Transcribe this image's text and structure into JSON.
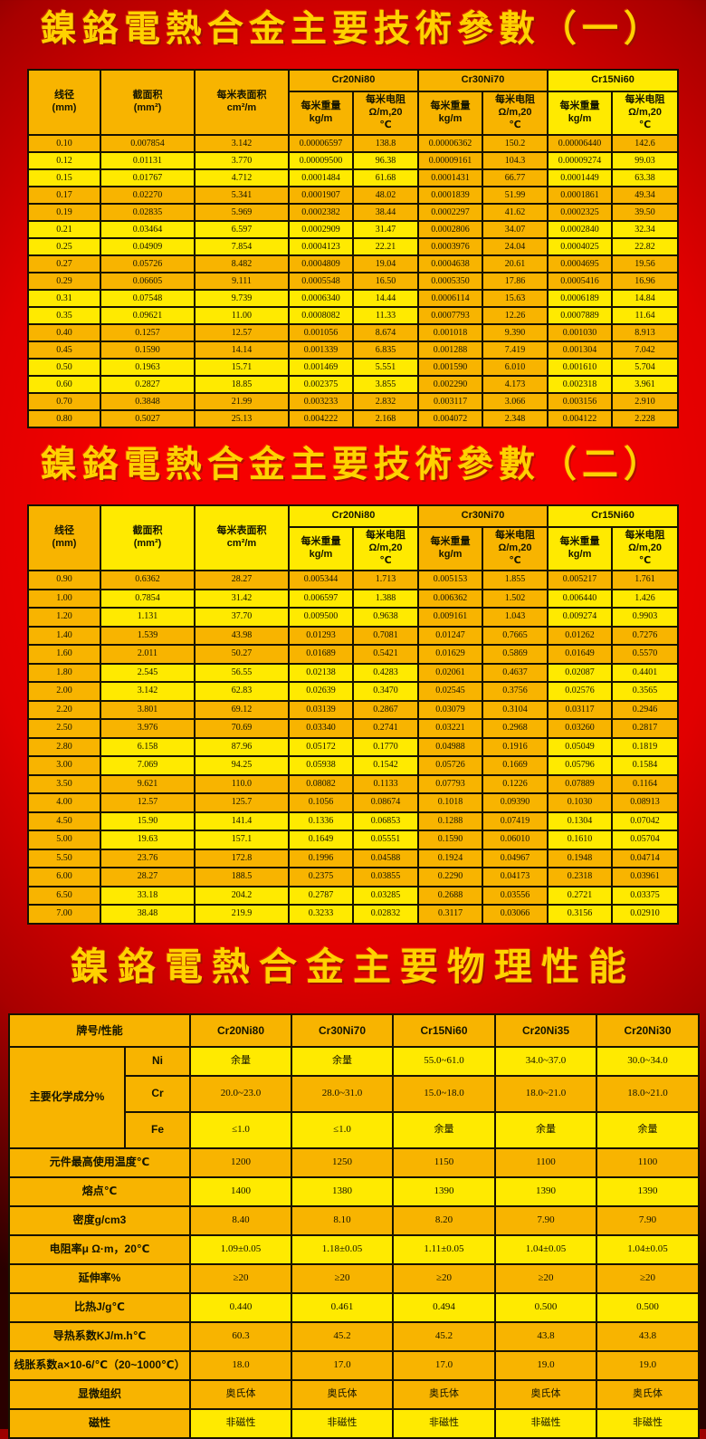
{
  "page": {
    "title_1": "鎳鉻電熱合金主要技術參數（一）",
    "title_2": "鎳鉻電熱合金主要技術參數（二）",
    "title_3": "鎳鉻電熱合金主要物理性能"
  },
  "palette": {
    "background_red": "#E10000",
    "cell_gold": "#F8B400",
    "cell_yellow": "#FFEA00",
    "title_gold": "#FFD200",
    "grid_black": "#181200"
  },
  "tech_table_headers": {
    "diameter": "线径\n(mm)",
    "section_area": "截面积\n(mm²)",
    "surface_area": "每米表面积\ncm²/m",
    "alloys": [
      "Cr20Ni80",
      "Cr30Ni70",
      "Cr15Ni60"
    ],
    "weight": "每米重量\nkg/m",
    "resistance": "每米电阻\nΩ/m,20\n℃"
  },
  "table1": {
    "rows": [
      [
        "0.10",
        "0.007854",
        "3.142",
        "0.00006597",
        "138.8",
        "0.00006362",
        "150.2",
        "0.00006440",
        "142.6"
      ],
      [
        "0.12",
        "0.01131",
        "3.770",
        "0.00009500",
        "96.38",
        "0.00009161",
        "104.3",
        "0.00009274",
        "99.03"
      ],
      [
        "0.15",
        "0.01767",
        "4.712",
        "0.0001484",
        "61.68",
        "0.0001431",
        "66.77",
        "0.0001449",
        "63.38"
      ],
      [
        "0.17",
        "0.02270",
        "5.341",
        "0.0001907",
        "48.02",
        "0.0001839",
        "51.99",
        "0.0001861",
        "49.34"
      ],
      [
        "0.19",
        "0.02835",
        "5.969",
        "0.0002382",
        "38.44",
        "0.0002297",
        "41.62",
        "0.0002325",
        "39.50"
      ],
      [
        "0.21",
        "0.03464",
        "6.597",
        "0.0002909",
        "31.47",
        "0.0002806",
        "34.07",
        "0.0002840",
        "32.34"
      ],
      [
        "0.25",
        "0.04909",
        "7.854",
        "0.0004123",
        "22.21",
        "0.0003976",
        "24.04",
        "0.0004025",
        "22.82"
      ],
      [
        "0.27",
        "0.05726",
        "8.482",
        "0.0004809",
        "19.04",
        "0.0004638",
        "20.61",
        "0.0004695",
        "19.56"
      ],
      [
        "0.29",
        "0.06605",
        "9.111",
        "0.0005548",
        "16.50",
        "0.0005350",
        "17.86",
        "0.0005416",
        "16.96"
      ],
      [
        "0.31",
        "0.07548",
        "9.739",
        "0.0006340",
        "14.44",
        "0.0006114",
        "15.63",
        "0.0006189",
        "14.84"
      ],
      [
        "0.35",
        "0.09621",
        "11.00",
        "0.0008082",
        "11.33",
        "0.0007793",
        "12.26",
        "0.0007889",
        "11.64"
      ],
      [
        "0.40",
        "0.1257",
        "12.57",
        "0.001056",
        "8.674",
        "0.001018",
        "9.390",
        "0.001030",
        "8.913"
      ],
      [
        "0.45",
        "0.1590",
        "14.14",
        "0.001339",
        "6.835",
        "0.001288",
        "7.419",
        "0.001304",
        "7.042"
      ],
      [
        "0.50",
        "0.1963",
        "15.71",
        "0.001469",
        "5.551",
        "0.001590",
        "6.010",
        "0.001610",
        "5.704"
      ],
      [
        "0.60",
        "0.2827",
        "18.85",
        "0.002375",
        "3.855",
        "0.002290",
        "4.173",
        "0.002318",
        "3.961"
      ],
      [
        "0.70",
        "0.3848",
        "21.99",
        "0.003233",
        "2.832",
        "0.003117",
        "3.066",
        "0.003156",
        "2.910"
      ],
      [
        "0.80",
        "0.5027",
        "25.13",
        "0.004222",
        "2.168",
        "0.004072",
        "2.348",
        "0.004122",
        "2.228"
      ]
    ]
  },
  "table2": {
    "rows": [
      [
        "0.90",
        "0.6362",
        "28.27",
        "0.005344",
        "1.713",
        "0.005153",
        "1.855",
        "0.005217",
        "1.761"
      ],
      [
        "1.00",
        "0.7854",
        "31.42",
        "0.006597",
        "1.388",
        "0.006362",
        "1.502",
        "0.006440",
        "1.426"
      ],
      [
        "1.20",
        "1.131",
        "37.70",
        "0.009500",
        "0.9638",
        "0.009161",
        "1.043",
        "0.009274",
        "0.9903"
      ],
      [
        "1.40",
        "1.539",
        "43.98",
        "0.01293",
        "0.7081",
        "0.01247",
        "0.7665",
        "0.01262",
        "0.7276"
      ],
      [
        "1.60",
        "2.011",
        "50.27",
        "0.01689",
        "0.5421",
        "0.01629",
        "0.5869",
        "0.01649",
        "0.5570"
      ],
      [
        "1.80",
        "2.545",
        "56.55",
        "0.02138",
        "0.4283",
        "0.02061",
        "0.4637",
        "0.02087",
        "0.4401"
      ],
      [
        "2.00",
        "3.142",
        "62.83",
        "0.02639",
        "0.3470",
        "0.02545",
        "0.3756",
        "0.02576",
        "0.3565"
      ],
      [
        "2.20",
        "3.801",
        "69.12",
        "0.03139",
        "0.2867",
        "0.03079",
        "0.3104",
        "0.03117",
        "0.2946"
      ],
      [
        "2.50",
        "3.976",
        "70.69",
        "0.03340",
        "0.2741",
        "0.03221",
        "0.2968",
        "0.03260",
        "0.2817"
      ],
      [
        "2.80",
        "6.158",
        "87.96",
        "0.05172",
        "0.1770",
        "0.04988",
        "0.1916",
        "0.05049",
        "0.1819"
      ],
      [
        "3.00",
        "7.069",
        "94.25",
        "0.05938",
        "0.1542",
        "0.05726",
        "0.1669",
        "0.05796",
        "0.1584"
      ],
      [
        "3.50",
        "9.621",
        "110.0",
        "0.08082",
        "0.1133",
        "0.07793",
        "0.1226",
        "0.07889",
        "0.1164"
      ],
      [
        "4.00",
        "12.57",
        "125.7",
        "0.1056",
        "0.08674",
        "0.1018",
        "0.09390",
        "0.1030",
        "0.08913"
      ],
      [
        "4.50",
        "15.90",
        "141.4",
        "0.1336",
        "0.06853",
        "0.1288",
        "0.07419",
        "0.1304",
        "0.07042"
      ],
      [
        "5.00",
        "19.63",
        "157.1",
        "0.1649",
        "0.05551",
        "0.1590",
        "0.06010",
        "0.1610",
        "0.05704"
      ],
      [
        "5.50",
        "23.76",
        "172.8",
        "0.1996",
        "0.04588",
        "0.1924",
        "0.04967",
        "0.1948",
        "0.04714"
      ],
      [
        "6.00",
        "28.27",
        "188.5",
        "0.2375",
        "0.03855",
        "0.2290",
        "0.04173",
        "0.2318",
        "0.03961"
      ],
      [
        "6.50",
        "33.18",
        "204.2",
        "0.2787",
        "0.03285",
        "0.2688",
        "0.03556",
        "0.2721",
        "0.03375"
      ],
      [
        "7.00",
        "38.48",
        "219.9",
        "0.3233",
        "0.02832",
        "0.3117",
        "0.03066",
        "0.3156",
        "0.02910"
      ]
    ]
  },
  "table3": {
    "corner": "牌号/性能",
    "alloys": [
      "Cr20Ni80",
      "Cr30Ni70",
      "Cr15Ni60",
      "Cr20Ni35",
      "Cr20Ni30"
    ],
    "chem_group_label": "主要化学成分%",
    "chem_rows": [
      {
        "element": "Ni",
        "values": [
          "余量",
          "余量",
          "55.0~61.0",
          "34.0~37.0",
          "30.0~34.0"
        ]
      },
      {
        "element": "Cr",
        "values": [
          "20.0~23.0",
          "28.0~31.0",
          "15.0~18.0",
          "18.0~21.0",
          "18.0~21.0"
        ]
      },
      {
        "element": "Fe",
        "values": [
          "≤1.0",
          "≤1.0",
          "余量",
          "余量",
          "余量"
        ]
      }
    ],
    "property_rows": [
      {
        "label": "元件最高使用温度℃",
        "values": [
          "1200",
          "1250",
          "1150",
          "1100",
          "1100"
        ]
      },
      {
        "label": "熔点℃",
        "values": [
          "1400",
          "1380",
          "1390",
          "1390",
          "1390"
        ]
      },
      {
        "label": "密度g/cm3",
        "values": [
          "8.40",
          "8.10",
          "8.20",
          "7.90",
          "7.90"
        ]
      },
      {
        "label": "电阻率μ Ω·m，20℃",
        "values": [
          "1.09±0.05",
          "1.18±0.05",
          "1.11±0.05",
          "1.04±0.05",
          "1.04±0.05"
        ]
      },
      {
        "label": "延伸率%",
        "values": [
          "≥20",
          "≥20",
          "≥20",
          "≥20",
          "≥20"
        ]
      },
      {
        "label": "比热J/g℃",
        "values": [
          "0.440",
          "0.461",
          "0.494",
          "0.500",
          "0.500"
        ]
      },
      {
        "label": "导热系数KJ/m.h℃",
        "values": [
          "60.3",
          "45.2",
          "45.2",
          "43.8",
          "43.8"
        ]
      },
      {
        "label": "线胀系数a×10-6/℃（20~1000℃）",
        "values": [
          "18.0",
          "17.0",
          "17.0",
          "19.0",
          "19.0"
        ]
      },
      {
        "label": "显微组织",
        "values": [
          "奥氏体",
          "奥氏体",
          "奥氏体",
          "奥氏体",
          "奥氏体"
        ]
      },
      {
        "label": "磁性",
        "values": [
          "非磁性",
          "非磁性",
          "非磁性",
          "非磁性",
          "非磁性"
        ]
      }
    ]
  }
}
